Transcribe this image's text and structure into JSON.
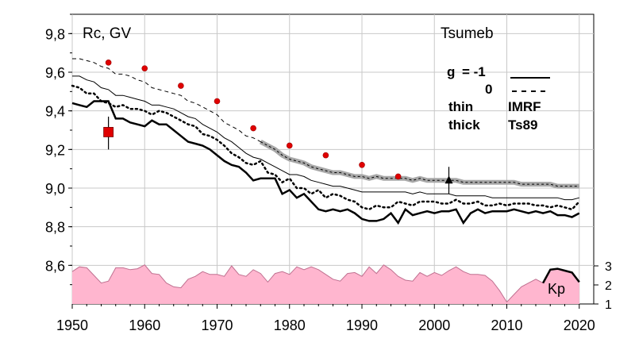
{
  "chart_data": {
    "type": "line",
    "title": "Tsumeb",
    "ylabel": "Rc, GV",
    "xlim": [
      1950,
      2022
    ],
    "ylim": [
      8.4,
      9.9
    ],
    "x_ticks": [
      "1950",
      "1960",
      "1970",
      "1980",
      "1990",
      "2000",
      "2010",
      "2020"
    ],
    "y_ticks": [
      "9,8",
      "9,6",
      "9,4",
      "9,2",
      "9,0",
      "8,8",
      "8,6"
    ],
    "grid": true,
    "legend": {
      "g_label": "g",
      "g_minus1": "= -1",
      "g_zero": "0",
      "thin": "thin",
      "thin_model": "IMRF",
      "thick": "thick",
      "thick_model": "Ts89"
    },
    "kp_axis": {
      "label": "Kp",
      "ticks": [
        "3",
        "2",
        "1"
      ]
    },
    "x": [
      1950,
      1951,
      1952,
      1953,
      1954,
      1955,
      1956,
      1957,
      1958,
      1959,
      1960,
      1961,
      1962,
      1963,
      1964,
      1965,
      1966,
      1967,
      1968,
      1969,
      1970,
      1971,
      1972,
      1973,
      1974,
      1975,
      1976,
      1977,
      1978,
      1979,
      1980,
      1981,
      1982,
      1983,
      1984,
      1985,
      1986,
      1987,
      1988,
      1989,
      1990,
      1991,
      1992,
      1993,
      1994,
      1995,
      1996,
      1997,
      1998,
      1999,
      2000,
      2001,
      2002,
      2003,
      2004,
      2005,
      2006,
      2007,
      2008,
      2009,
      2010,
      2011,
      2012,
      2013,
      2014,
      2015,
      2016,
      2017,
      2018,
      2019,
      2020
    ],
    "series": [
      {
        "style": "thin-dashed",
        "values": [
          9.67,
          9.67,
          9.66,
          9.65,
          9.63,
          9.62,
          9.59,
          9.59,
          9.58,
          9.56,
          9.55,
          9.52,
          9.51,
          9.5,
          9.49,
          9.48,
          9.45,
          9.44,
          9.42,
          9.4,
          9.38,
          9.34,
          9.32,
          9.3,
          9.27,
          9.26,
          9.24,
          9.22,
          9.2,
          9.17,
          9.15,
          9.14,
          9.13,
          9.11,
          9.1,
          9.09,
          9.08,
          9.08,
          9.07,
          9.06,
          9.06,
          9.05,
          9.06,
          9.05,
          9.05,
          9.05,
          9.05,
          9.04,
          9.05,
          9.04,
          9.04,
          9.04,
          9.04,
          9.04,
          9.03,
          9.03,
          9.03,
          9.03,
          9.03,
          9.03,
          9.03,
          9.03,
          9.02,
          9.02,
          9.02,
          9.02,
          9.02,
          9.01,
          9.01,
          9.01,
          9.01
        ]
      },
      {
        "style": "thick-gray",
        "values": [
          null,
          null,
          null,
          null,
          null,
          null,
          null,
          null,
          null,
          null,
          null,
          null,
          null,
          null,
          null,
          null,
          null,
          null,
          null,
          null,
          null,
          null,
          null,
          null,
          null,
          null,
          9.24,
          9.22,
          9.2,
          9.17,
          9.15,
          9.14,
          9.13,
          9.11,
          9.1,
          9.09,
          9.08,
          9.08,
          9.07,
          9.06,
          9.06,
          9.05,
          9.06,
          9.05,
          9.05,
          9.05,
          9.05,
          9.04,
          9.05,
          9.04,
          9.04,
          9.04,
          9.04,
          9.04,
          9.03,
          9.03,
          9.03,
          9.03,
          9.03,
          9.03,
          9.03,
          9.03,
          9.02,
          9.02,
          9.02,
          9.02,
          9.02,
          9.01,
          9.01,
          9.01,
          9.01
        ]
      },
      {
        "style": "thin-solid",
        "values": [
          9.58,
          9.58,
          9.56,
          9.55,
          9.52,
          9.51,
          9.48,
          9.48,
          9.47,
          9.46,
          9.45,
          9.43,
          9.43,
          9.42,
          9.41,
          9.39,
          9.37,
          9.36,
          9.33,
          9.31,
          9.29,
          9.26,
          9.24,
          9.21,
          9.18,
          9.16,
          9.15,
          9.13,
          9.11,
          9.09,
          9.07,
          9.07,
          9.06,
          9.04,
          9.03,
          9.02,
          9.01,
          9.01,
          9.0,
          8.99,
          8.98,
          8.98,
          8.98,
          8.98,
          8.98,
          8.98,
          8.98,
          8.97,
          8.98,
          8.97,
          8.97,
          8.97,
          8.97,
          8.96,
          8.96,
          8.96,
          8.96,
          8.96,
          8.95,
          8.95,
          8.95,
          8.95,
          8.95,
          8.95,
          8.95,
          8.95,
          8.95,
          8.95,
          8.94,
          8.94,
          8.95
        ]
      },
      {
        "style": "dotted",
        "values": [
          9.53,
          9.52,
          9.49,
          9.49,
          9.45,
          9.44,
          9.42,
          9.43,
          9.41,
          9.41,
          9.4,
          9.38,
          9.4,
          9.39,
          9.37,
          9.35,
          9.33,
          9.32,
          9.28,
          9.27,
          9.25,
          9.22,
          9.18,
          9.16,
          9.13,
          9.12,
          9.14,
          9.08,
          9.07,
          9.03,
          9.05,
          9.0,
          9.0,
          8.97,
          8.99,
          8.95,
          8.97,
          8.96,
          8.94,
          8.93,
          8.9,
          8.89,
          8.91,
          8.9,
          8.9,
          8.93,
          8.92,
          8.91,
          8.93,
          8.93,
          8.93,
          8.92,
          8.92,
          8.94,
          8.92,
          8.92,
          8.93,
          8.91,
          8.91,
          8.92,
          8.91,
          8.92,
          8.92,
          8.92,
          8.91,
          8.91,
          8.9,
          8.91,
          8.9,
          8.89,
          8.93
        ]
      },
      {
        "style": "thick-solid",
        "values": [
          9.44,
          9.43,
          9.42,
          9.45,
          9.45,
          9.45,
          9.36,
          9.36,
          9.34,
          9.33,
          9.32,
          9.35,
          9.33,
          9.33,
          9.3,
          9.27,
          9.24,
          9.23,
          9.22,
          9.2,
          9.17,
          9.14,
          9.12,
          9.11,
          9.08,
          9.04,
          9.05,
          9.05,
          9.05,
          8.97,
          8.99,
          8.95,
          8.97,
          8.93,
          8.89,
          8.88,
          8.89,
          8.88,
          8.89,
          8.87,
          8.84,
          8.83,
          8.83,
          8.84,
          8.87,
          8.82,
          8.89,
          8.86,
          8.87,
          8.88,
          8.87,
          8.88,
          8.88,
          8.89,
          8.82,
          8.87,
          8.89,
          8.87,
          8.88,
          8.88,
          8.88,
          8.89,
          8.88,
          8.87,
          8.88,
          8.87,
          8.88,
          8.86,
          8.86,
          8.85,
          8.87
        ]
      }
    ],
    "points": {
      "red_dots": {
        "x": [
          1955,
          1960,
          1965,
          1970,
          1975,
          1980,
          1985,
          1990,
          1995
        ],
        "y": [
          9.65,
          9.62,
          9.53,
          9.45,
          9.31,
          9.22,
          9.17,
          9.12,
          9.06
        ]
      },
      "red_square": {
        "x": 1955,
        "y": 9.29,
        "err_low": 9.2,
        "err_high": 9.37
      },
      "triangle": {
        "x": 2002,
        "y": 9.04,
        "err_low": 8.97,
        "err_high": 9.11
      }
    },
    "kp": {
      "x": [
        1950,
        1951,
        1952,
        1953,
        1954,
        1955,
        1956,
        1957,
        1958,
        1959,
        1960,
        1961,
        1962,
        1963,
        1964,
        1965,
        1966,
        1967,
        1968,
        1969,
        1970,
        1971,
        1972,
        1973,
        1974,
        1975,
        1976,
        1977,
        1978,
        1979,
        1980,
        1981,
        1982,
        1983,
        1984,
        1985,
        1986,
        1987,
        1988,
        1989,
        1990,
        1991,
        1992,
        1993,
        1994,
        1995,
        1996,
        1997,
        1998,
        1999,
        2000,
        2001,
        2002,
        2003,
        2004,
        2005,
        2006,
        2007,
        2008,
        2009,
        2010,
        2011,
        2012,
        2013,
        2014,
        2015,
        2016,
        2017,
        2018,
        2019,
        2020
      ],
      "values": [
        2.7,
        2.95,
        2.9,
        2.5,
        2.1,
        2.2,
        2.9,
        2.9,
        2.8,
        2.85,
        3.05,
        2.6,
        2.55,
        2.1,
        1.9,
        1.85,
        2.3,
        2.45,
        2.7,
        2.55,
        2.55,
        2.45,
        3.0,
        2.55,
        2.45,
        2.8,
        2.6,
        2.15,
        2.6,
        2.7,
        2.55,
        2.95,
        2.8,
        2.95,
        2.8,
        2.55,
        2.3,
        2.2,
        2.6,
        2.65,
        2.45,
        2.95,
        2.6,
        3.05,
        2.8,
        2.45,
        2.25,
        2.2,
        2.65,
        2.45,
        2.65,
        2.5,
        2.75,
        2.95,
        2.7,
        2.55,
        2.55,
        2.5,
        2.2,
        1.7,
        1.1,
        1.5,
        1.9,
        2.1,
        2.3,
        2.1,
        2.8,
        2.85,
        2.75,
        2.65,
        2.15
      ]
    }
  }
}
